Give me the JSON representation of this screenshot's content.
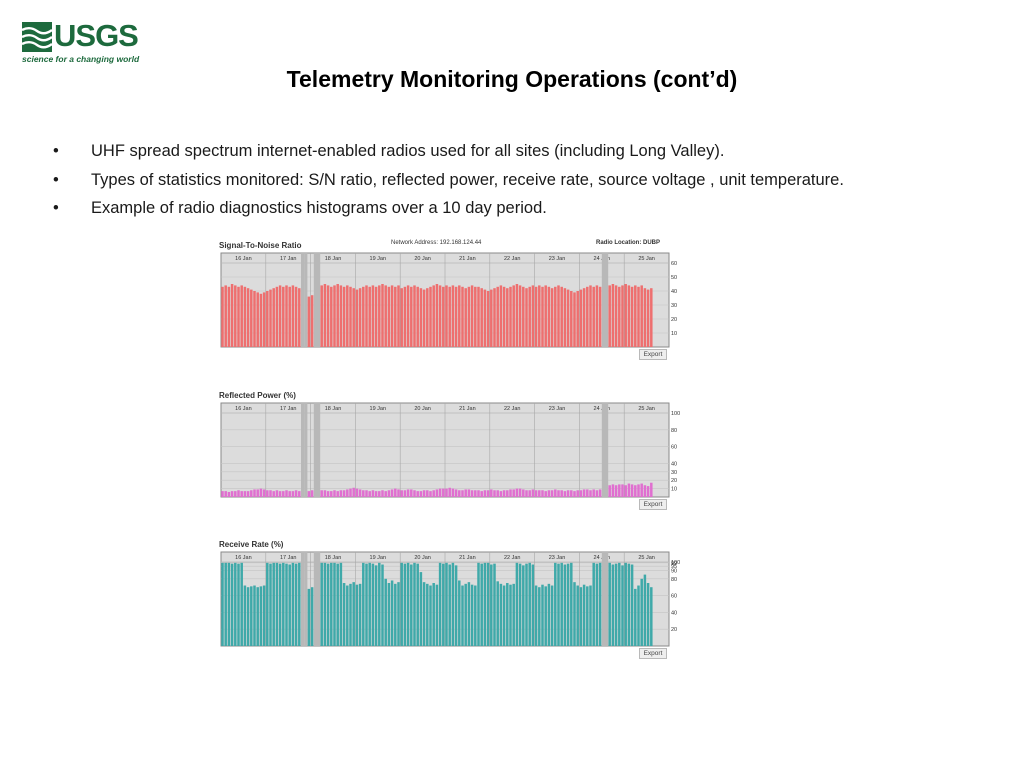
{
  "logo": {
    "name": "USGS",
    "tagline": "science for a changing world",
    "color": "#1d6a3d"
  },
  "slide": {
    "title": "Telemetry Monitoring Operations (cont’d)",
    "bullets": [
      "UHF spread spectrum internet-enabled radios used for all sites (including Long Valley).",
      "Types of  statistics monitored: S/N ratio, reflected power, receive rate,  source voltage , unit temperature.",
      "Example of radio diagnostics histograms over a 10 day period."
    ],
    "bullet_glyph": "•"
  },
  "charts": [
    {
      "title": "Signal-To-Noise Ratio",
      "network_address": "Network Address: 192.168.124.44",
      "radio_location": "Radio Location: DUBP",
      "export_label": "Export",
      "color": "#ee6f6f",
      "day_labels": [
        "16 Jan",
        "17 Jan",
        "18 Jan",
        "19 Jan",
        "20 Jan",
        "21 Jan",
        "22 Jan",
        "23 Jan",
        "24 Jan",
        "25 Jan"
      ],
      "y_ticks": [
        "60",
        "50",
        "40",
        "30",
        "20",
        "10"
      ]
    },
    {
      "title": "Reflected Power (%)",
      "export_label": "Export",
      "color": "#e06fd0",
      "day_labels": [
        "16 Jan",
        "17 Jan",
        "18 Jan",
        "19 Jan",
        "20 Jan",
        "21 Jan",
        "22 Jan",
        "23 Jan",
        "24 Jan",
        "25 Jan"
      ],
      "y_ticks": [
        "100",
        "80",
        "60",
        "40",
        "30",
        "20",
        "10"
      ]
    },
    {
      "title": "Receive Rate (%)",
      "export_label": "Export",
      "color": "#3fa9a9",
      "day_labels": [
        "16 Jan",
        "17 Jan",
        "18 Jan",
        "19 Jan",
        "20 Jan",
        "21 Jan",
        "22 Jan",
        "23 Jan",
        "24 Jan",
        "25 Jan"
      ],
      "y_ticks": [
        "100",
        "99",
        "95",
        "90",
        "80",
        "60",
        "40",
        "20"
      ]
    }
  ],
  "chart_data": [
    {
      "type": "bar",
      "title": "Signal-To-Noise Ratio",
      "xlabel": "",
      "ylabel": "",
      "x_range": [
        "16 Jan",
        "25 Jan"
      ],
      "ylim": [
        0,
        60
      ],
      "y_ticks": [
        60,
        50,
        40,
        30,
        20,
        10
      ],
      "grid": true,
      "gaps": [
        [
          "17 Jan",
          "17 Jan"
        ],
        [
          "24 Jan",
          "25 Jan"
        ]
      ],
      "series": [
        {
          "start": "16 Jan",
          "step_days": 0.1,
          "values": [
            43,
            44,
            43,
            45,
            44,
            43,
            44,
            43,
            42,
            41,
            40,
            39,
            38,
            39,
            40,
            41,
            42,
            43,
            44,
            43,
            44,
            43,
            44,
            43,
            42,
            null,
            null,
            36,
            37,
            null,
            null,
            44,
            45,
            44,
            43,
            44,
            45,
            44,
            43,
            44,
            43,
            42,
            41,
            42,
            43,
            44,
            43,
            44,
            43,
            44,
            45,
            44,
            43,
            44,
            43,
            44,
            42,
            43,
            44,
            43,
            44,
            43,
            42,
            41,
            42,
            43,
            44,
            45,
            44,
            43,
            44,
            43,
            44,
            43,
            44,
            43,
            42,
            43,
            44,
            43,
            43,
            42,
            41,
            40,
            41,
            42,
            43,
            44,
            43,
            42,
            43,
            44,
            45,
            44,
            43,
            42,
            43,
            44,
            43,
            44,
            43,
            44,
            43,
            42,
            43,
            44,
            43,
            42,
            41,
            40,
            39,
            40,
            41,
            42,
            43,
            44,
            43,
            44,
            43,
            null,
            null,
            44,
            45,
            44,
            43,
            44,
            45,
            44,
            43,
            44,
            43,
            44,
            42,
            41,
            42,
            null,
            null,
            null,
            null,
            null
          ]
        }
      ]
    },
    {
      "type": "bar",
      "title": "Reflected Power (%)",
      "xlabel": "",
      "ylabel": "",
      "x_range": [
        "16 Jan",
        "25 Jan"
      ],
      "ylim": [
        0,
        100
      ],
      "y_ticks": [
        100,
        80,
        60,
        40,
        30,
        20,
        10
      ],
      "grid": true,
      "gaps": [
        [
          "17 Jan",
          "17 Jan"
        ],
        [
          "24 Jan",
          "25 Jan"
        ]
      ],
      "series": [
        {
          "start": "16 Jan",
          "step_days": 0.1,
          "values": [
            7,
            7,
            6,
            7,
            7,
            8,
            7,
            7,
            7,
            8,
            9,
            9,
            10,
            9,
            8,
            8,
            7,
            8,
            7,
            7,
            8,
            7,
            7,
            8,
            7,
            null,
            null,
            7,
            8,
            null,
            null,
            8,
            8,
            7,
            7,
            8,
            7,
            8,
            8,
            9,
            10,
            11,
            10,
            9,
            8,
            8,
            7,
            8,
            7,
            7,
            8,
            7,
            8,
            9,
            10,
            9,
            8,
            8,
            9,
            9,
            8,
            7,
            7,
            8,
            8,
            7,
            8,
            9,
            10,
            10,
            10,
            11,
            10,
            9,
            8,
            8,
            9,
            9,
            8,
            8,
            8,
            7,
            8,
            8,
            9,
            8,
            8,
            7,
            8,
            8,
            9,
            9,
            10,
            10,
            9,
            8,
            8,
            9,
            8,
            8,
            8,
            7,
            8,
            8,
            9,
            8,
            8,
            7,
            8,
            8,
            7,
            8,
            8,
            9,
            9,
            8,
            9,
            8,
            9,
            null,
            null,
            14,
            15,
            14,
            15,
            15,
            14,
            16,
            15,
            14,
            15,
            16,
            14,
            13,
            17,
            null,
            null,
            null,
            null,
            null
          ]
        }
      ]
    },
    {
      "type": "bar",
      "title": "Receive Rate (%)",
      "xlabel": "",
      "ylabel": "",
      "x_range": [
        "16 Jan",
        "25 Jan"
      ],
      "ylim": [
        0,
        100
      ],
      "y_ticks": [
        100,
        99,
        95,
        90,
        80,
        60,
        40,
        20
      ],
      "grid": true,
      "gaps": [
        [
          "17 Jan",
          "17 Jan"
        ],
        [
          "24 Jan",
          "25 Jan"
        ]
      ],
      "series": [
        {
          "start": "16 Jan",
          "step_days": 0.1,
          "values": [
            99,
            99,
            99,
            98,
            99,
            98,
            99,
            72,
            70,
            71,
            72,
            70,
            71,
            72,
            99,
            98,
            99,
            99,
            98,
            99,
            98,
            97,
            99,
            98,
            99,
            null,
            null,
            68,
            70,
            null,
            null,
            99,
            99,
            98,
            99,
            99,
            98,
            99,
            75,
            72,
            74,
            76,
            73,
            74,
            99,
            98,
            99,
            98,
            96,
            99,
            97,
            80,
            75,
            78,
            74,
            76,
            99,
            98,
            99,
            97,
            99,
            98,
            88,
            76,
            74,
            72,
            75,
            73,
            99,
            98,
            99,
            97,
            99,
            96,
            78,
            72,
            74,
            76,
            73,
            72,
            99,
            98,
            99,
            99,
            97,
            98,
            77,
            74,
            72,
            75,
            73,
            74,
            99,
            98,
            96,
            98,
            99,
            97,
            72,
            70,
            73,
            71,
            74,
            72,
            99,
            98,
            99,
            97,
            98,
            99,
            76,
            72,
            70,
            73,
            71,
            72,
            99,
            98,
            99,
            null,
            null,
            99,
            97,
            98,
            99,
            96,
            99,
            98,
            97,
            68,
            72,
            80,
            85,
            75,
            70,
            null,
            null,
            null,
            null,
            null
          ]
        }
      ]
    }
  ]
}
